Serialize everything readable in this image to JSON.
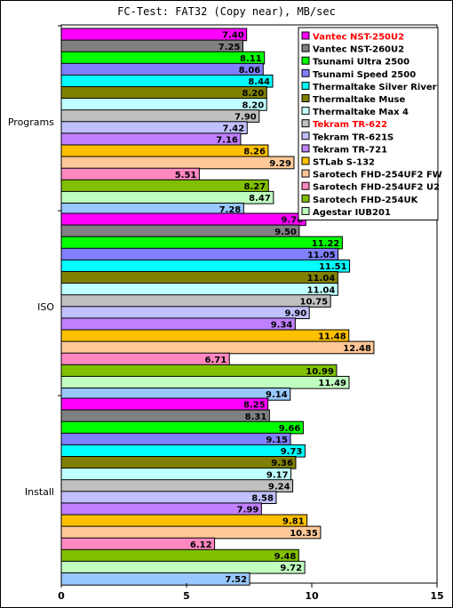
{
  "chart_data": {
    "type": "bar",
    "orientation": "horizontal",
    "title": "FC-Test: FAT32 (Copy near),  MB/sec",
    "categories": [
      "Programs",
      "ISO",
      "Install"
    ],
    "xlim": [
      0,
      15
    ],
    "xticks": [
      0,
      5,
      10,
      15
    ],
    "legend_position": "top-right",
    "series": [
      {
        "name": "Vantec NST-250U2",
        "color": "#ff00ff",
        "legend_color": "#ff0000",
        "values": [
          7.4,
          9.76,
          8.25
        ]
      },
      {
        "name": "Vantec NST-260U2",
        "color": "#808080",
        "values": [
          7.25,
          9.5,
          8.31
        ]
      },
      {
        "name": "Tsunami Ultra 2500",
        "color": "#00ff00",
        "values": [
          8.11,
          11.22,
          9.66
        ]
      },
      {
        "name": "Tsunami Speed 2500",
        "color": "#8080ff",
        "values": [
          8.06,
          11.05,
          9.15
        ]
      },
      {
        "name": "Thermaltake Silver River",
        "color": "#00ffff",
        "values": [
          8.44,
          11.51,
          9.73
        ]
      },
      {
        "name": "Thermaltake Muse",
        "color": "#808000",
        "values": [
          8.2,
          11.04,
          9.36
        ]
      },
      {
        "name": "Thermaltake Max 4",
        "color": "#c0ffff",
        "values": [
          8.2,
          11.04,
          9.17
        ]
      },
      {
        "name": "Tekram TR-622",
        "color": "#c0c0c0",
        "legend_color": "#ff0000",
        "values": [
          7.9,
          10.75,
          9.24
        ]
      },
      {
        "name": "Tekram TR-621S",
        "color": "#c0c0ff",
        "values": [
          7.42,
          9.9,
          8.58
        ]
      },
      {
        "name": "Tekram TR-721",
        "color": "#c080ff",
        "values": [
          7.16,
          9.34,
          7.99
        ]
      },
      {
        "name": "STLab S-132",
        "color": "#ffc000",
        "values": [
          8.26,
          11.48,
          9.81
        ]
      },
      {
        "name": "Sarotech FHD-254UF2 FW",
        "color": "#ffc898",
        "values": [
          9.29,
          12.48,
          10.35
        ]
      },
      {
        "name": "Sarotech FHD-254UF2 U2",
        "color": "#ff88c0",
        "values": [
          5.51,
          6.71,
          6.12
        ]
      },
      {
        "name": "Sarotech FHD-254UK",
        "color": "#80c000",
        "values": [
          8.27,
          10.99,
          9.48
        ]
      },
      {
        "name": "Agestar IUB201",
        "color": "#c0ffc0",
        "values": [
          8.47,
          11.49,
          9.72
        ]
      },
      {
        "name": "",
        "color": "#98c8ff",
        "values": [
          7.28,
          9.14,
          7.52
        ]
      }
    ]
  }
}
